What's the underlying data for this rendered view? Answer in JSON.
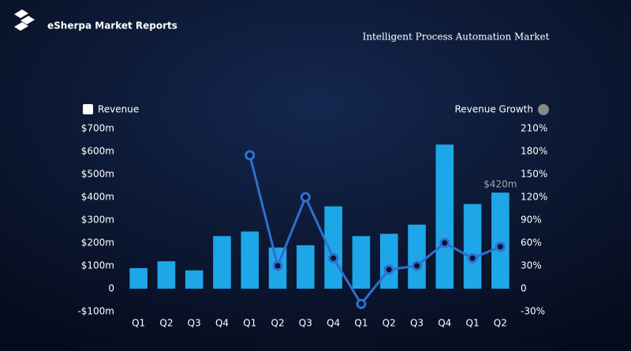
{
  "brand": "eSherpa Market Reports",
  "chart_data": {
    "type": "bar",
    "title": "Intelligent Process Automation Market",
    "categories": [
      "Q1",
      "Q2",
      "Q3",
      "Q4",
      "Q1",
      "Q2",
      "Q3",
      "Q4",
      "Q1",
      "Q2",
      "Q3",
      "Q4",
      "Q1",
      "Q2"
    ],
    "series": [
      {
        "name": "Revenue",
        "color": "#1ea7e8",
        "values": [
          90,
          120,
          80,
          230,
          250,
          180,
          190,
          360,
          230,
          240,
          280,
          630,
          370,
          420
        ],
        "value_labels": [
          null,
          null,
          null,
          null,
          null,
          null,
          null,
          null,
          null,
          null,
          null,
          null,
          null,
          "$420m"
        ]
      },
      {
        "name": "Revenue Growth",
        "type": "line",
        "axis": "y2",
        "color": "#2f6fd0",
        "values": [
          null,
          null,
          null,
          null,
          175,
          30,
          120,
          40,
          -20,
          25,
          30,
          60,
          40,
          55
        ]
      }
    ],
    "ylim": [
      -100,
      700
    ],
    "yticks": [
      {
        "value": -100,
        "label": "-$100m"
      },
      {
        "value": 0,
        "label": "0"
      },
      {
        "value": 100,
        "label": "$100m"
      },
      {
        "value": 200,
        "label": "$200m"
      },
      {
        "value": 300,
        "label": "$300m"
      },
      {
        "value": 400,
        "label": "$400m"
      },
      {
        "value": 500,
        "label": "$500m"
      },
      {
        "value": 600,
        "label": "$600m"
      },
      {
        "value": 700,
        "label": "$700m"
      }
    ],
    "y2lim": [
      -30,
      210
    ],
    "y2ticks": [
      {
        "value": -30,
        "label": "-30%"
      },
      {
        "value": 0,
        "label": "0"
      },
      {
        "value": 30,
        "label": "30%"
      },
      {
        "value": 60,
        "label": "60%"
      },
      {
        "value": 90,
        "label": "90%"
      },
      {
        "value": 120,
        "label": "120%"
      },
      {
        "value": 150,
        "label": "150%"
      },
      {
        "value": 180,
        "label": "180%"
      },
      {
        "value": 210,
        "label": "210%"
      }
    ]
  }
}
